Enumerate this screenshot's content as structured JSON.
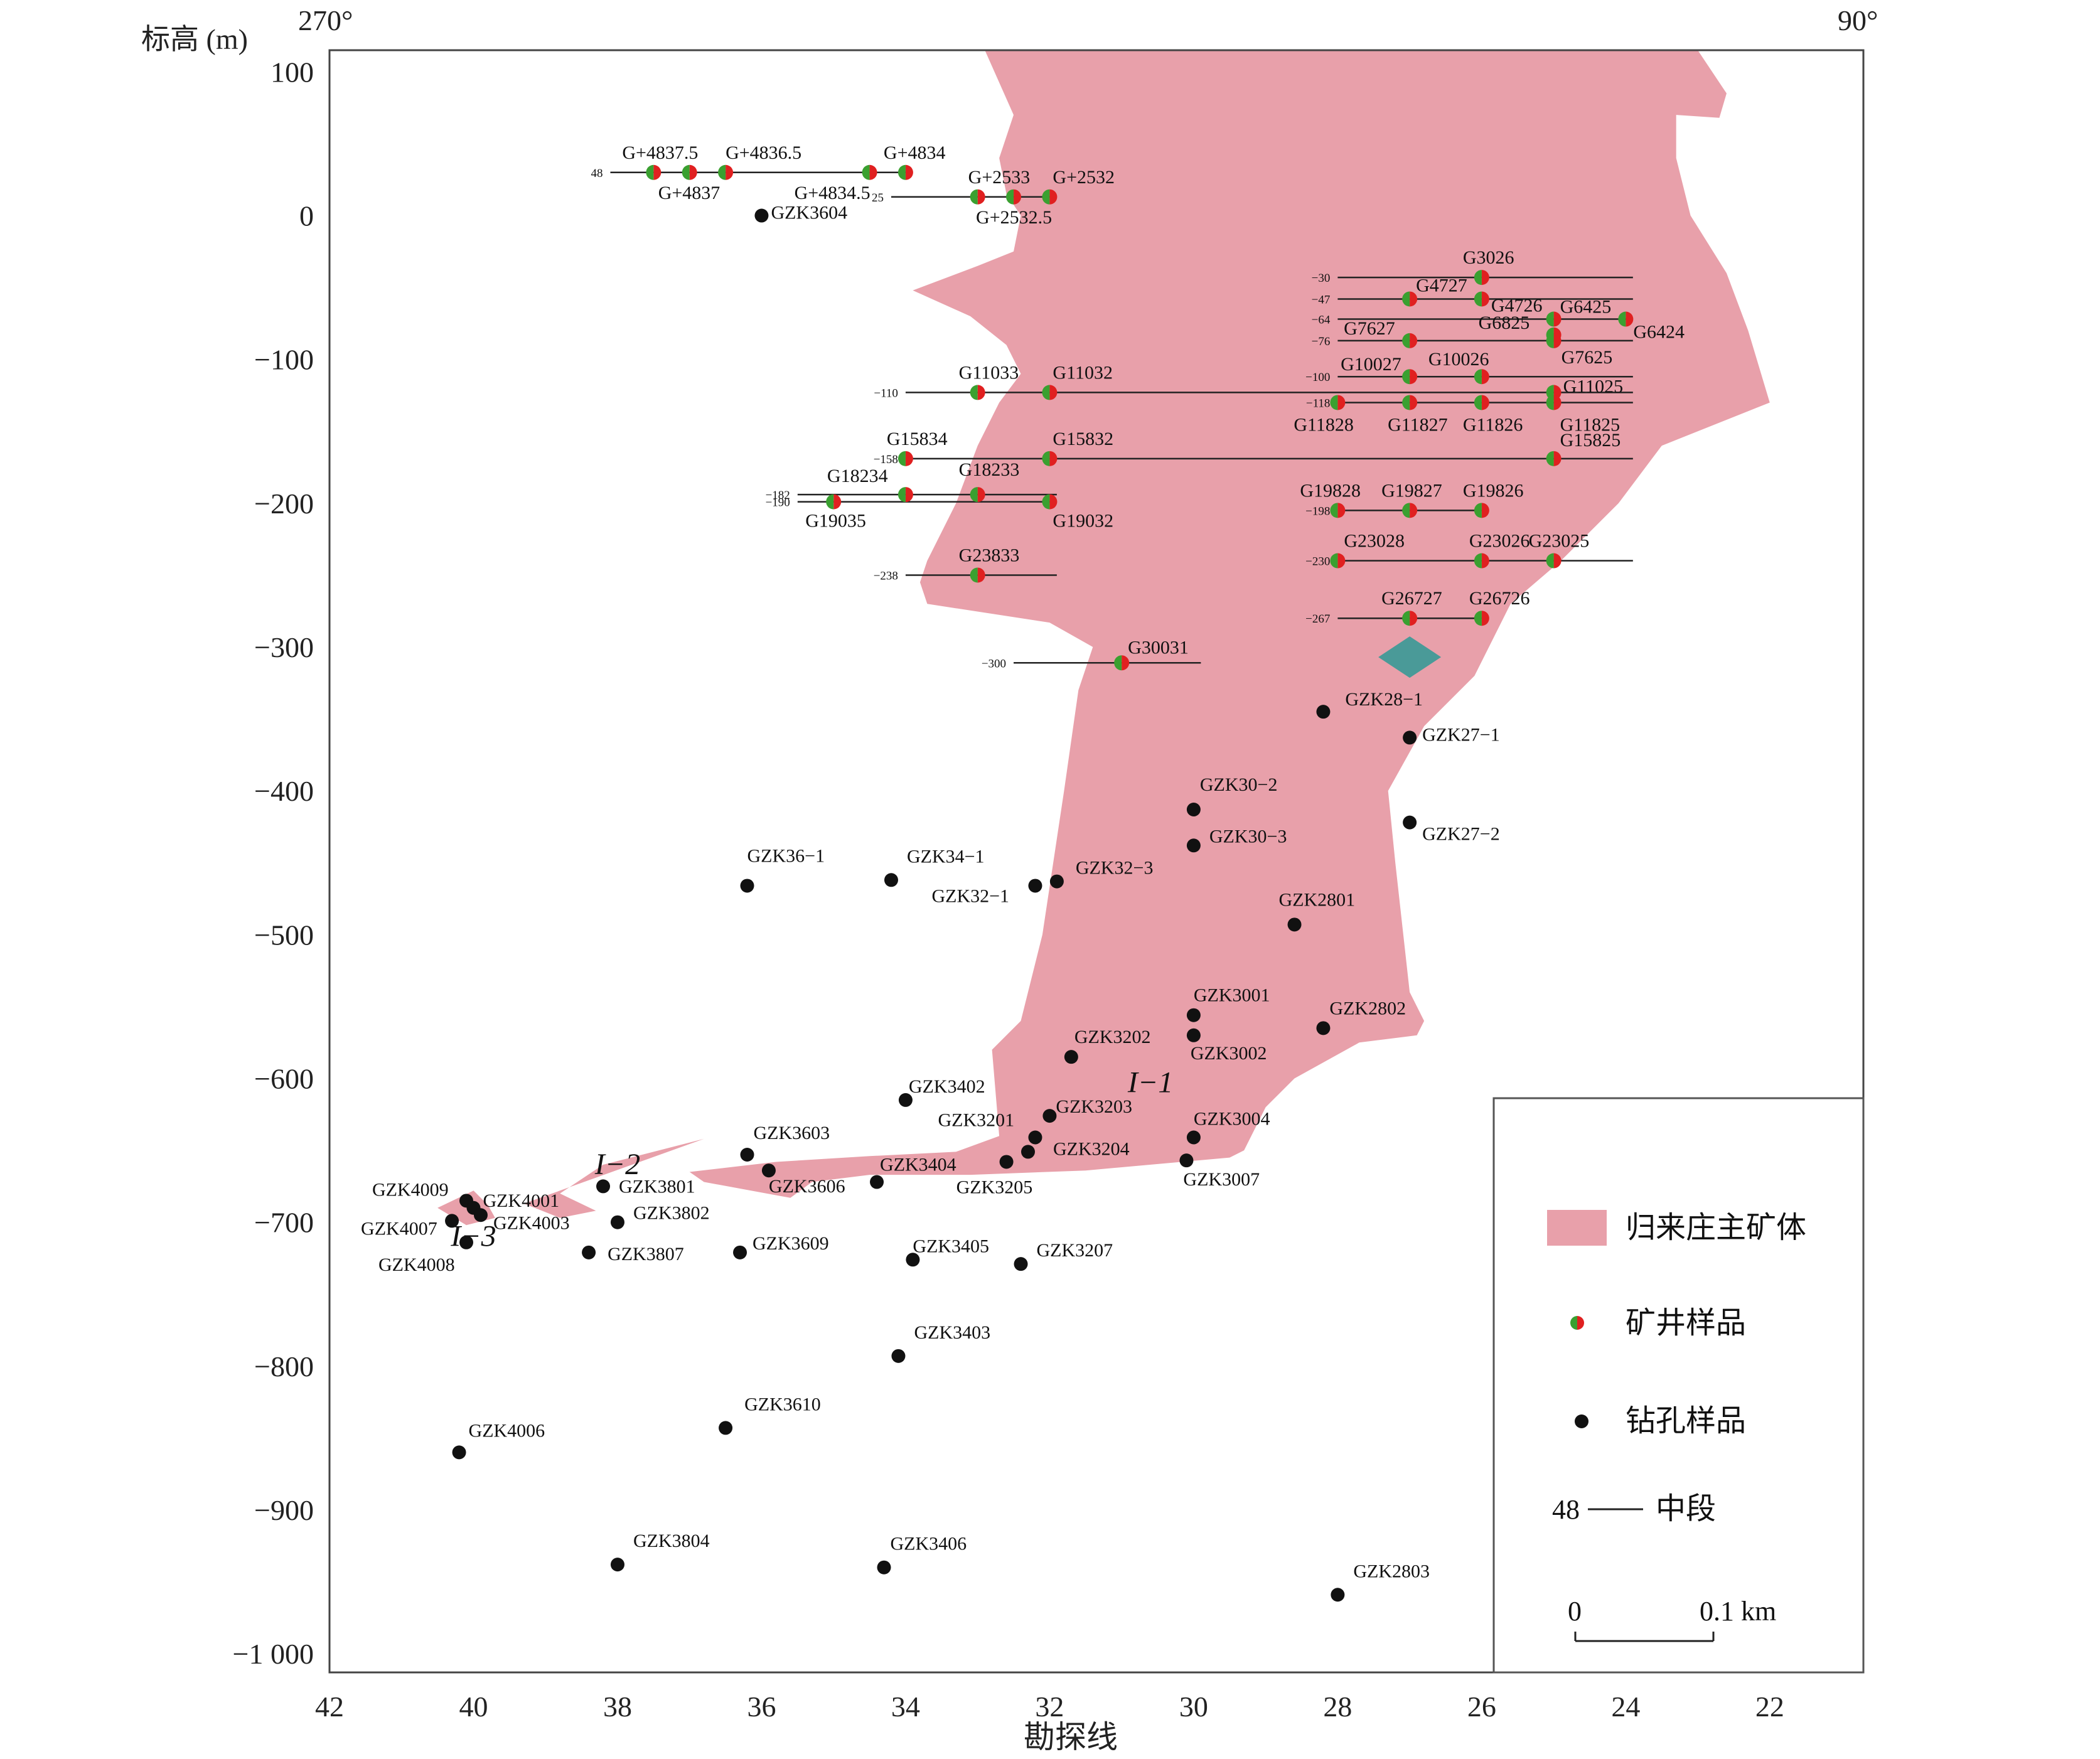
{
  "chart_data": {
    "type": "scatter",
    "title": "",
    "ylabel": "标高 (m)",
    "xlabel": "勘探线",
    "top_left_label": "270°",
    "top_right_label": "90°",
    "xlim": [
      42,
      20.7
    ],
    "ylim": [
      -1013,
      115
    ],
    "x_ticks": [
      42,
      40,
      38,
      36,
      34,
      32,
      30,
      28,
      26,
      24,
      22
    ],
    "x_tick_labels": [
      "42",
      "40",
      "38",
      "36",
      "34",
      "32",
      "30",
      "28",
      "26",
      "24",
      "22"
    ],
    "y_ticks": [
      100,
      0,
      -100,
      -200,
      -300,
      -400,
      -500,
      -600,
      -700,
      -800,
      -900,
      -1000
    ],
    "y_tick_labels": [
      "100",
      "0",
      "−100",
      "−200",
      "−300",
      "−400",
      "−500",
      "−600",
      "−700",
      "−800",
      "−900",
      "−1 000"
    ],
    "ore_bodies": [
      {
        "name": "I−1",
        "label_at": [
          30.6,
          -603
        ],
        "polygon": [
          [
            26.9,
            115
          ],
          [
            23,
            115
          ],
          [
            22.6,
            85
          ],
          [
            22.7,
            68
          ],
          [
            23.3,
            70
          ],
          [
            23.3,
            40
          ],
          [
            23.1,
            0
          ],
          [
            22.6,
            -40
          ],
          [
            22.3,
            -80
          ],
          [
            22.0,
            -130
          ],
          [
            23.5,
            -160
          ],
          [
            24.1,
            -200
          ],
          [
            24.9,
            -240
          ],
          [
            25.6,
            -270
          ],
          [
            26.1,
            -320
          ],
          [
            26.8,
            -355
          ],
          [
            27.3,
            -400
          ],
          [
            27.2,
            -450
          ],
          [
            27.0,
            -540
          ],
          [
            26.8,
            -560
          ],
          [
            26.9,
            -570
          ],
          [
            27.7,
            -575
          ],
          [
            28.6,
            -600
          ],
          [
            29.0,
            -620
          ],
          [
            29.3,
            -650
          ],
          [
            29.5,
            -655
          ],
          [
            31.5,
            -664
          ],
          [
            33.1,
            -667
          ],
          [
            34.5,
            -667
          ],
          [
            35.3,
            -672
          ],
          [
            35.6,
            -683
          ],
          [
            36.8,
            -672
          ],
          [
            37.0,
            -665
          ],
          [
            35.8,
            -658
          ],
          [
            34.5,
            -654
          ],
          [
            33.3,
            -651
          ],
          [
            32.7,
            -640
          ],
          [
            32.8,
            -580
          ],
          [
            32.4,
            -560
          ],
          [
            32.1,
            -500
          ],
          [
            31.8,
            -400
          ],
          [
            31.6,
            -330
          ],
          [
            31.4,
            -300
          ],
          [
            32.0,
            -283
          ],
          [
            33.7,
            -270
          ],
          [
            33.8,
            -255
          ],
          [
            33.7,
            -240
          ],
          [
            33.3,
            -200
          ],
          [
            33.0,
            -160
          ],
          [
            32.7,
            -130
          ],
          [
            32.4,
            -110
          ],
          [
            32.6,
            -90
          ],
          [
            33.1,
            -70
          ],
          [
            33.9,
            -52
          ],
          [
            33.0,
            -35
          ],
          [
            32.5,
            -25
          ],
          [
            32.4,
            0
          ],
          [
            32.6,
            15
          ],
          [
            32.7,
            40
          ],
          [
            32.5,
            70
          ],
          [
            32.9,
            115
          ]
        ],
        "color": "#e8a0aa"
      },
      {
        "name": "I−2",
        "label_at": [
          38.0,
          -660
        ],
        "polygon": [
          [
            36.8,
            -642
          ],
          [
            38.2,
            -660
          ],
          [
            38.8,
            -680
          ],
          [
            38.3,
            -692
          ],
          [
            38.8,
            -697
          ],
          [
            39.3,
            -687
          ]
        ],
        "color": "#e8a0aa"
      },
      {
        "name": "I−3",
        "label_at": [
          40.0,
          -710
        ],
        "polygon": [
          [
            40.0,
            -678
          ],
          [
            40.5,
            -690
          ],
          [
            40.1,
            -702
          ],
          [
            39.7,
            -697
          ],
          [
            39.8,
            -688
          ]
        ],
        "color": "#e8a0aa"
      }
    ],
    "green_diamond": {
      "x": 27.0,
      "y": -307,
      "color": "#4a9a98"
    },
    "levels": [
      {
        "label": "48",
        "y": 30,
        "x1": 38.1,
        "x2": 33.9
      },
      {
        "label": "25",
        "y": 13,
        "x1": 34.2,
        "x2": 31.9
      },
      {
        "label": "−30",
        "y": -43,
        "x1": 28.0,
        "x2": 23.9
      },
      {
        "label": "−47",
        "y": -58,
        "x1": 28.0,
        "x2": 23.9
      },
      {
        "label": "−64",
        "y": -72,
        "x1": 28.0,
        "x2": 23.9
      },
      {
        "label": "−76",
        "y": -87,
        "x1": 28.0,
        "x2": 23.9
      },
      {
        "label": "−100",
        "y": -112,
        "x1": 28.0,
        "x2": 23.9
      },
      {
        "label": "−110",
        "y": -123,
        "x1": 34.0,
        "x2": 23.9
      },
      {
        "label": "−118",
        "y": -130,
        "x1": 28.0,
        "x2": 23.9
      },
      {
        "label": "−158",
        "y": -169,
        "x1": 34.0,
        "x2": 23.9
      },
      {
        "label": "−182",
        "y": -194,
        "x1": 35.5,
        "x2": 31.9
      },
      {
        "label": "−190",
        "y": -199,
        "x1": 35.5,
        "x2": 31.9
      },
      {
        "label": "−198",
        "y": -205,
        "x1": 28.0,
        "x2": 26.0
      },
      {
        "label": "−230",
        "y": -240,
        "x1": 28.0,
        "x2": 23.9
      },
      {
        "label": "−238",
        "y": -250,
        "x1": 34.0,
        "x2": 31.9
      },
      {
        "label": "−267",
        "y": -280,
        "x1": 28.0,
        "x2": 26.0
      },
      {
        "label": "−300",
        "y": -311,
        "x1": 32.5,
        "x2": 29.9
      }
    ],
    "mine_samples": [
      {
        "name": "G+4837.5",
        "x": 37.5,
        "y": 30,
        "lx": -50,
        "ly": -22,
        "align": "start"
      },
      {
        "name": "G+4837",
        "x": 37.0,
        "y": 30,
        "lx": -50,
        "ly": 42,
        "align": "start"
      },
      {
        "name": "G+4836.5",
        "x": 36.5,
        "y": 30,
        "lx": 0,
        "ly": -22,
        "align": "start"
      },
      {
        "name": "G+4834.5",
        "x": 34.5,
        "y": 30,
        "lx": -120,
        "ly": 42,
        "align": "start"
      },
      {
        "name": "G+4834",
        "x": 34.0,
        "y": 30,
        "lx": -35,
        "ly": -22,
        "align": "start"
      },
      {
        "name": "G+2533",
        "x": 33.0,
        "y": 13,
        "lx": -15,
        "ly": -22,
        "align": "start"
      },
      {
        "name": "G+2532.5",
        "x": 32.5,
        "y": 13,
        "lx": -60,
        "ly": 42,
        "align": "start"
      },
      {
        "name": "G+2532",
        "x": 32.0,
        "y": 13,
        "lx": 5,
        "ly": -22,
        "align": "start"
      },
      {
        "name": "G3026",
        "x": 26.0,
        "y": -43,
        "lx": -30,
        "ly": -22,
        "align": "start"
      },
      {
        "name": "G4727",
        "x": 27.0,
        "y": -58,
        "lx": 10,
        "ly": -12,
        "align": "start"
      },
      {
        "name": "G4726",
        "x": 26.0,
        "y": -58,
        "lx": 15,
        "ly": 20,
        "align": "start"
      },
      {
        "name": "G6425",
        "x": 25.0,
        "y": -72,
        "lx": 10,
        "ly": -10,
        "align": "start"
      },
      {
        "name": "G6424",
        "x": 24.0,
        "y": -72,
        "lx": 12,
        "ly": 30,
        "align": "start"
      },
      {
        "name": "G7627",
        "x": 27.0,
        "y": -87,
        "lx": -105,
        "ly": -10,
        "align": "start"
      },
      {
        "name": "G6825",
        "x": 25.0,
        "y": -83,
        "lx": -120,
        "ly": -10,
        "align": "start"
      },
      {
        "name": "G7625",
        "x": 25.0,
        "y": -87,
        "lx": 12,
        "ly": 36,
        "align": "start"
      },
      {
        "name": "G10027",
        "x": 27.0,
        "y": -112,
        "lx": -110,
        "ly": -10,
        "align": "start"
      },
      {
        "name": "G10026",
        "x": 26.0,
        "y": -112,
        "lx": -85,
        "ly": -18,
        "align": "start"
      },
      {
        "name": "G11025",
        "x": 25.0,
        "y": -123,
        "lx": 15,
        "ly": 0,
        "align": "start"
      },
      {
        "name": "G11828",
        "x": 28.0,
        "y": -130,
        "lx": -70,
        "ly": 45,
        "align": "start"
      },
      {
        "name": "G11827",
        "x": 27.0,
        "y": -130,
        "lx": -35,
        "ly": 45,
        "align": "start"
      },
      {
        "name": "G11826",
        "x": 26.0,
        "y": -130,
        "lx": -30,
        "ly": 45,
        "align": "start"
      },
      {
        "name": "G11825",
        "x": 25.0,
        "y": -130,
        "lx": 10,
        "ly": 45,
        "align": "start"
      },
      {
        "name": "G11033",
        "x": 33.0,
        "y": -123,
        "lx": -30,
        "ly": -22,
        "align": "start"
      },
      {
        "name": "G11032",
        "x": 32.0,
        "y": -123,
        "lx": 5,
        "ly": -22,
        "align": "start"
      },
      {
        "name": "G15834",
        "x": 34.0,
        "y": -169,
        "lx": -30,
        "ly": -22,
        "align": "start"
      },
      {
        "name": "G15832",
        "x": 32.0,
        "y": -169,
        "lx": 5,
        "ly": -22,
        "align": "start"
      },
      {
        "name": "G15825",
        "x": 25.0,
        "y": -169,
        "lx": 10,
        "ly": -20,
        "align": "start"
      },
      {
        "name": "G18234",
        "x": 34.0,
        "y": -194,
        "lx": -125,
        "ly": -20,
        "align": "start"
      },
      {
        "name": "G18233",
        "x": 33.0,
        "y": -194,
        "lx": -30,
        "ly": -30,
        "align": "start"
      },
      {
        "name": "G19035",
        "x": 35.0,
        "y": -199,
        "lx": -45,
        "ly": 40,
        "align": "start"
      },
      {
        "name": "G19032",
        "x": 32.0,
        "y": -199,
        "lx": 5,
        "ly": 40,
        "align": "start"
      },
      {
        "name": "G23833",
        "x": 33.0,
        "y": -250,
        "lx": -30,
        "ly": -22,
        "align": "start"
      },
      {
        "name": "G19828",
        "x": 28.0,
        "y": -205,
        "lx": -60,
        "ly": -22,
        "align": "start"
      },
      {
        "name": "G19827",
        "x": 27.0,
        "y": -205,
        "lx": -45,
        "ly": -22,
        "align": "start"
      },
      {
        "name": "G19826",
        "x": 26.0,
        "y": -205,
        "lx": -30,
        "ly": -22,
        "align": "start"
      },
      {
        "name": "G23028",
        "x": 28.0,
        "y": -240,
        "lx": 10,
        "ly": -22,
        "align": "start"
      },
      {
        "name": "G23026",
        "x": 26.0,
        "y": -240,
        "lx": -20,
        "ly": -22,
        "align": "start"
      },
      {
        "name": "G23025",
        "x": 25.0,
        "y": -240,
        "lx": -40,
        "ly": -22,
        "align": "start"
      },
      {
        "name": "G26727",
        "x": 27.0,
        "y": -280,
        "lx": -45,
        "ly": -22,
        "align": "start"
      },
      {
        "name": "G26726",
        "x": 26.0,
        "y": -280,
        "lx": -20,
        "ly": -22,
        "align": "start"
      },
      {
        "name": "G30031",
        "x": 31.0,
        "y": -311,
        "lx": 10,
        "ly": -15,
        "align": "start"
      }
    ],
    "drill_samples": [
      {
        "name": "GZK3604",
        "x": 36.0,
        "y": 0,
        "lx": 15,
        "ly": 5
      },
      {
        "name": "GZK28−1",
        "x": 28.2,
        "y": -345,
        "lx": 35,
        "ly": -10
      },
      {
        "name": "GZK27−1",
        "x": 27.0,
        "y": -363,
        "lx": 20,
        "ly": 5
      },
      {
        "name": "GZK30−2",
        "x": 30.0,
        "y": -413,
        "lx": 10,
        "ly": -30
      },
      {
        "name": "GZK30−3",
        "x": 30.0,
        "y": -438,
        "lx": 25,
        "ly": -5
      },
      {
        "name": "GZK27−2",
        "x": 27.0,
        "y": -422,
        "lx": 20,
        "ly": 28
      },
      {
        "name": "GZK36−1",
        "x": 36.2,
        "y": -466,
        "lx": 0,
        "ly": -38
      },
      {
        "name": "GZK34−1",
        "x": 34.2,
        "y": -462,
        "lx": 25,
        "ly": -28
      },
      {
        "name": "GZK32−1",
        "x": 32.2,
        "y": -466,
        "lx": -165,
        "ly": 26
      },
      {
        "name": "GZK32−3",
        "x": 31.9,
        "y": -463,
        "lx": 30,
        "ly": -12
      },
      {
        "name": "GZK2801",
        "x": 28.6,
        "y": -493,
        "lx": -25,
        "ly": -30
      },
      {
        "name": "GZK3001",
        "x": 30.0,
        "y": -556,
        "lx": 0,
        "ly": -22
      },
      {
        "name": "GZK3002",
        "x": 30.0,
        "y": -570,
        "lx": -5,
        "ly": 38
      },
      {
        "name": "GZK2802",
        "x": 28.2,
        "y": -565,
        "lx": 10,
        "ly": -22
      },
      {
        "name": "GZK3202",
        "x": 31.7,
        "y": -585,
        "lx": 5,
        "ly": -22
      },
      {
        "name": "GZK3402",
        "x": 34.0,
        "y": -615,
        "lx": 5,
        "ly": -12
      },
      {
        "name": "GZK3203",
        "x": 32.0,
        "y": -626,
        "lx": 10,
        "ly": -5
      },
      {
        "name": "GZK3201",
        "x": 32.2,
        "y": -641,
        "lx": -155,
        "ly": -18
      },
      {
        "name": "GZK3204",
        "x": 32.3,
        "y": -651,
        "lx": 40,
        "ly": 5
      },
      {
        "name": "GZK3004",
        "x": 30.0,
        "y": -641,
        "lx": 0,
        "ly": -20
      },
      {
        "name": "GZK3007",
        "x": 30.1,
        "y": -657,
        "lx": -5,
        "ly": 40
      },
      {
        "name": "GZK3603",
        "x": 36.2,
        "y": -653,
        "lx": 10,
        "ly": -25
      },
      {
        "name": "GZK3606",
        "x": 35.9,
        "y": -664,
        "lx": 0,
        "ly": 35
      },
      {
        "name": "GZK3404",
        "x": 34.4,
        "y": -672,
        "lx": 5,
        "ly": -18
      },
      {
        "name": "GZK3205",
        "x": 32.6,
        "y": -658,
        "lx": -80,
        "ly": 50
      },
      {
        "name": "GZK3801",
        "x": 38.2,
        "y": -675,
        "lx": 25,
        "ly": 10
      },
      {
        "name": "GZK3802",
        "x": 38.0,
        "y": -700,
        "lx": 25,
        "ly": -5
      },
      {
        "name": "GZK3807",
        "x": 38.4,
        "y": -721,
        "lx": 30,
        "ly": 12
      },
      {
        "name": "GZK3609",
        "x": 36.3,
        "y": -721,
        "lx": 20,
        "ly": -5
      },
      {
        "name": "GZK3405",
        "x": 33.9,
        "y": -726,
        "lx": 0,
        "ly": -12
      },
      {
        "name": "GZK3207",
        "x": 32.4,
        "y": -729,
        "lx": 25,
        "ly": -12
      },
      {
        "name": "GZK4009",
        "x": 40.1,
        "y": -685,
        "lx": -150,
        "ly": -8
      },
      {
        "name": "GZK4001",
        "x": 40.0,
        "y": -690,
        "lx": 15,
        "ly": -2
      },
      {
        "name": "GZK4003",
        "x": 39.9,
        "y": -695,
        "lx": 20,
        "ly": 22
      },
      {
        "name": "GZK4007",
        "x": 40.3,
        "y": -699,
        "lx": -145,
        "ly": 22
      },
      {
        "name": "GZK4008",
        "x": 40.1,
        "y": -714,
        "lx": -140,
        "ly": 45
      },
      {
        "name": "GZK3403",
        "x": 34.1,
        "y": -793,
        "lx": 25,
        "ly": -28
      },
      {
        "name": "GZK3610",
        "x": 36.5,
        "y": -843,
        "lx": 30,
        "ly": -28
      },
      {
        "name": "GZK4006",
        "x": 40.2,
        "y": -860,
        "lx": 15,
        "ly": -25
      },
      {
        "name": "GZK3804",
        "x": 38.0,
        "y": -938,
        "lx": 25,
        "ly": -28
      },
      {
        "name": "GZK3406",
        "x": 34.3,
        "y": -940,
        "lx": 10,
        "ly": -28
      },
      {
        "name": "GZK2803",
        "x": 28.0,
        "y": -959,
        "lx": 25,
        "ly": -28
      }
    ],
    "legend": {
      "placement": "bottom-right",
      "ore_label": "归来庄主矿体",
      "mine_label": "矿井样品",
      "drill_label": "钻孔样品",
      "level_prefix": "48",
      "level_label": "中段",
      "scale_start": "0",
      "scale_end": "0.1 km"
    }
  }
}
